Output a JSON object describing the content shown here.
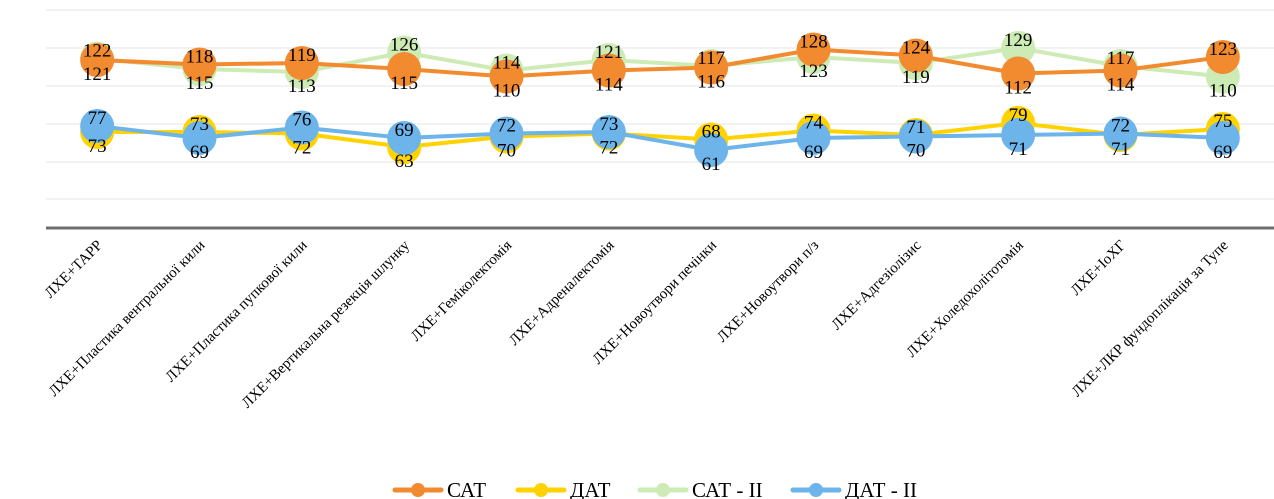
{
  "chart_data": {
    "type": "line",
    "title": "",
    "xlabel": "",
    "ylabel": "",
    "grid": true,
    "legend_position": "bottom",
    "categories": [
      "ЛХЕ+ТАРР",
      "ЛХЕ+Пластика вентральної кили",
      "ЛХЕ+Пластика пупкової кили",
      "ЛХЕ+Вертикальна резекція шлунку",
      "ЛХЕ+Геміколектомія",
      "ЛХЕ+Адреналектомія",
      "ЛХЕ+Новоутвори печінки",
      "ЛХЕ+Новоутвори п/з",
      "ЛХЕ+Адгезіолізис",
      "ЛХЕ+Холедохолітотомія",
      "ЛХЕ+ІоХГ",
      "ЛХЕ+ЛКР фундоплікація за Тупе"
    ],
    "series": [
      {
        "name": "САТ",
        "color": "#F28B30",
        "values": [
          121,
          118,
          119,
          115,
          110,
          114,
          116,
          128,
          124,
          112,
          114,
          123
        ]
      },
      {
        "name": "ДАТ",
        "color": "#FFD200",
        "values": [
          73,
          73,
          72,
          63,
          70,
          72,
          68,
          74,
          71,
          79,
          71,
          75
        ]
      },
      {
        "name": "САТ - II",
        "color": "#CDEBB4",
        "values": [
          122,
          115,
          113,
          126,
          114,
          121,
          117,
          123,
          119,
          129,
          117,
          110
        ]
      },
      {
        "name": "ДАТ - II",
        "color": "#6CB4EA",
        "values": [
          77,
          69,
          76,
          69,
          72,
          73,
          61,
          69,
          70,
          71,
          72,
          69
        ]
      }
    ]
  }
}
